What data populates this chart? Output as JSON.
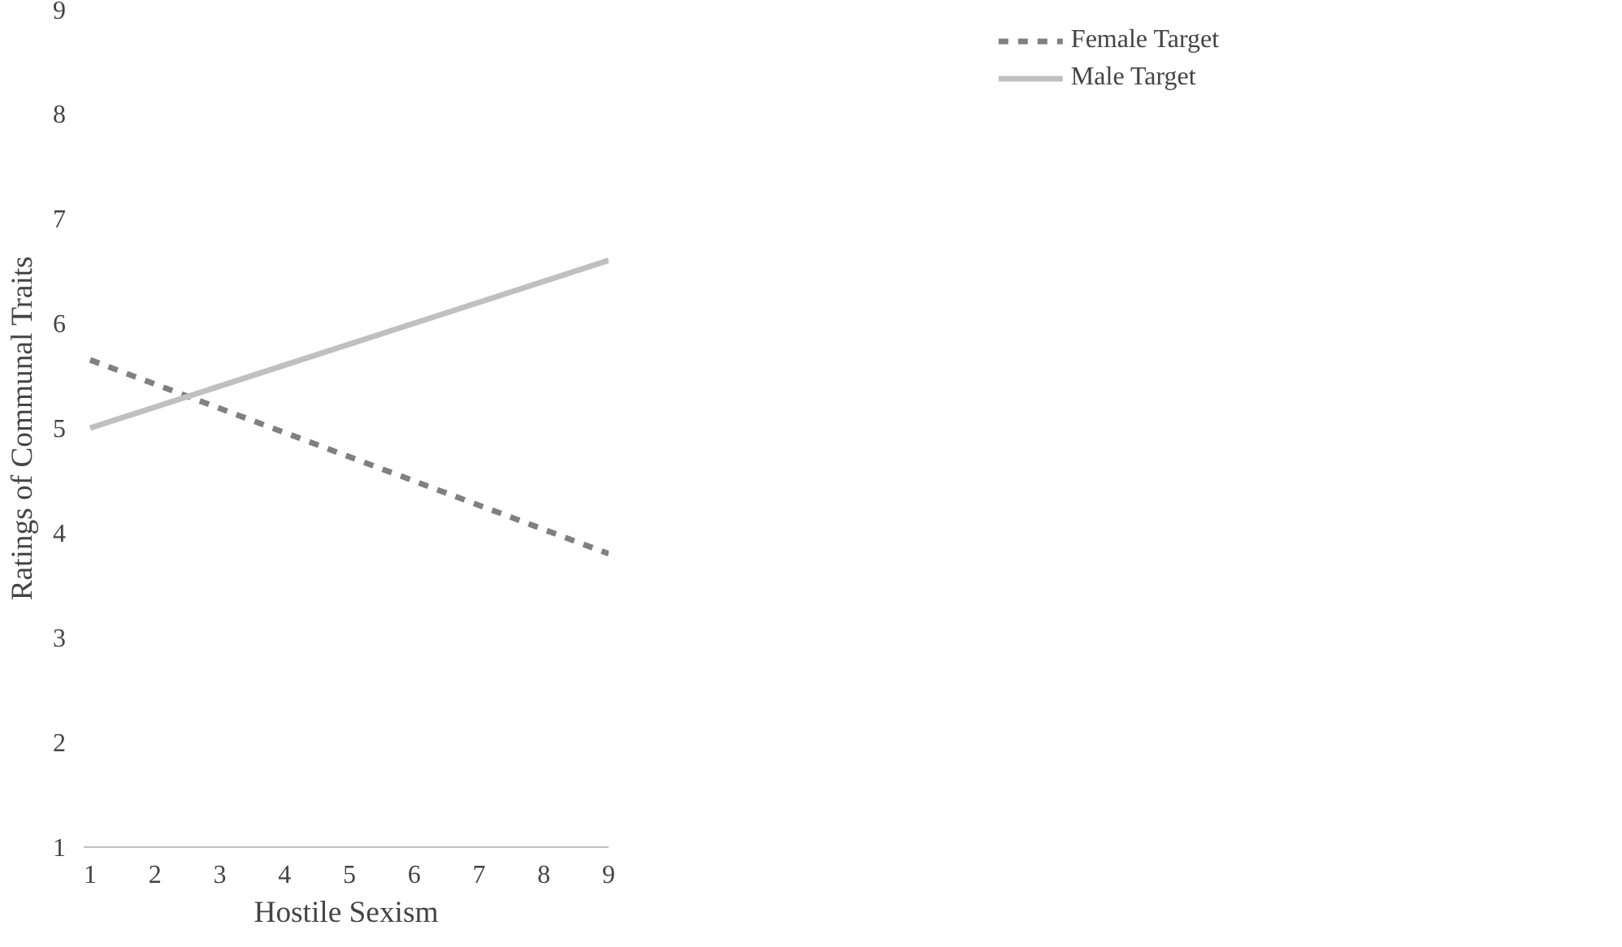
{
  "chart_data": {
    "type": "line",
    "xlabel": "Hostile Sexism",
    "ylabel": "Ratings of Communal Traits",
    "x": [
      1,
      9
    ],
    "series": [
      {
        "name": "Female Target",
        "color": "#808080",
        "values": [
          5.65,
          3.8
        ],
        "line_style": "dashed"
      },
      {
        "name": "Male Target",
        "color": "#c0c0c0",
        "values": [
          5.0,
          6.6
        ],
        "line_style": "solid"
      }
    ],
    "xlim": [
      0.9,
      9
    ],
    "ylim": [
      1,
      9
    ],
    "xticks": [
      1,
      2,
      3,
      4,
      5,
      6,
      7,
      8,
      9
    ],
    "yticks": [
      1,
      2,
      3,
      4,
      5,
      6,
      7,
      8,
      9
    ],
    "grid": false,
    "legend": "top right",
    "marker": "none"
  }
}
